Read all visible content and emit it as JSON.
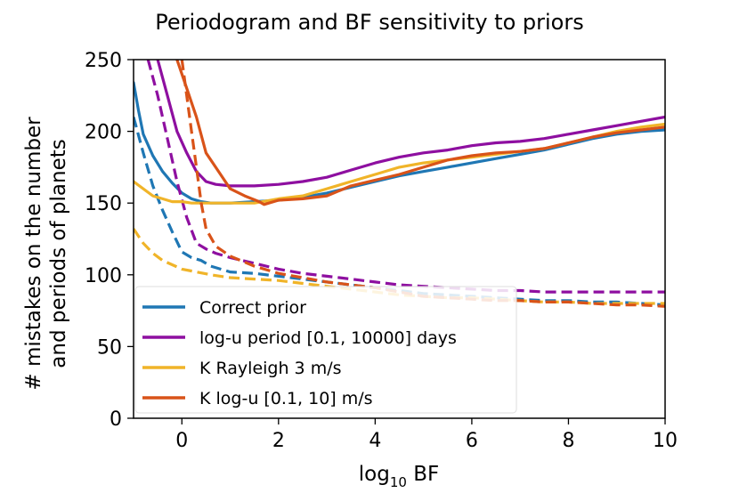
{
  "chart_data": {
    "type": "line",
    "title": "Periodogram and BF sensitivity to priors",
    "xlabel_main": "log",
    "xlabel_sub": "10",
    "xlabel_tail": " BF",
    "ylabel_lines": [
      "# mistakes on the number",
      "and periods of planets"
    ],
    "xlim": [
      -1,
      10
    ],
    "ylim": [
      0,
      250
    ],
    "xticks": [
      0,
      2,
      4,
      6,
      8,
      10
    ],
    "yticks": [
      0,
      50,
      100,
      150,
      200,
      250
    ],
    "grid": false,
    "legend_position": "lower-left",
    "legend_note": "solid = Bayes factor, dashed = periodogram (styles shown, not printed)",
    "series": [
      {
        "name": "Correct prior",
        "color": "#1f77b4",
        "solid": [
          [
            -1.0,
            234
          ],
          [
            -0.9,
            215
          ],
          [
            -0.8,
            198
          ],
          [
            -0.6,
            183
          ],
          [
            -0.4,
            172
          ],
          [
            -0.2,
            164
          ],
          [
            0.0,
            157
          ],
          [
            0.2,
            153
          ],
          [
            0.4,
            151
          ],
          [
            0.6,
            150
          ],
          [
            1.0,
            150
          ],
          [
            1.5,
            151
          ],
          [
            2.0,
            152
          ],
          [
            2.5,
            154
          ],
          [
            3.0,
            157
          ],
          [
            3.5,
            161
          ],
          [
            4.0,
            165
          ],
          [
            4.5,
            169
          ],
          [
            5.0,
            172
          ],
          [
            5.5,
            175
          ],
          [
            6.0,
            178
          ],
          [
            6.5,
            181
          ],
          [
            7.0,
            184
          ],
          [
            7.5,
            187
          ],
          [
            8.0,
            191
          ],
          [
            8.5,
            195
          ],
          [
            9.0,
            198
          ],
          [
            9.5,
            200
          ],
          [
            10.0,
            201
          ]
        ],
        "dashed": [
          [
            -1.0,
            210
          ],
          [
            -0.8,
            185
          ],
          [
            -0.6,
            162
          ],
          [
            -0.4,
            145
          ],
          [
            -0.2,
            130
          ],
          [
            0.0,
            116
          ],
          [
            0.2,
            112
          ],
          [
            0.4,
            110
          ],
          [
            0.6,
            106
          ],
          [
            0.8,
            104
          ],
          [
            1.0,
            102
          ],
          [
            1.5,
            101
          ],
          [
            2.0,
            99
          ],
          [
            2.5,
            97
          ],
          [
            3.0,
            95
          ],
          [
            3.5,
            93
          ],
          [
            4.0,
            91
          ],
          [
            4.5,
            89
          ],
          [
            5.0,
            87
          ],
          [
            5.5,
            86
          ],
          [
            6.0,
            85
          ],
          [
            6.5,
            84
          ],
          [
            7.0,
            83
          ],
          [
            7.5,
            82
          ],
          [
            8.0,
            82
          ],
          [
            8.5,
            81
          ],
          [
            9.0,
            81
          ],
          [
            9.5,
            80
          ],
          [
            10.0,
            79
          ]
        ]
      },
      {
        "name": "log-u period [0.1, 10000] days",
        "color": "#8e0fa0",
        "solid": [
          [
            -0.5,
            250
          ],
          [
            -0.3,
            225
          ],
          [
            -0.1,
            200
          ],
          [
            0.1,
            185
          ],
          [
            0.3,
            172
          ],
          [
            0.5,
            165
          ],
          [
            0.7,
            163
          ],
          [
            1.0,
            162
          ],
          [
            1.5,
            162
          ],
          [
            2.0,
            163
          ],
          [
            2.5,
            165
          ],
          [
            3.0,
            168
          ],
          [
            3.5,
            173
          ],
          [
            4.0,
            178
          ],
          [
            4.5,
            182
          ],
          [
            5.0,
            185
          ],
          [
            5.5,
            187
          ],
          [
            6.0,
            190
          ],
          [
            6.5,
            192
          ],
          [
            7.0,
            193
          ],
          [
            7.5,
            195
          ],
          [
            8.0,
            198
          ],
          [
            8.5,
            201
          ],
          [
            9.0,
            204
          ],
          [
            9.5,
            207
          ],
          [
            10.0,
            210
          ]
        ],
        "dashed": [
          [
            -0.7,
            250
          ],
          [
            -0.5,
            225
          ],
          [
            -0.3,
            195
          ],
          [
            -0.1,
            165
          ],
          [
            0.1,
            140
          ],
          [
            0.3,
            122
          ],
          [
            0.5,
            118
          ],
          [
            0.7,
            115
          ],
          [
            1.0,
            112
          ],
          [
            1.5,
            108
          ],
          [
            2.0,
            104
          ],
          [
            2.5,
            101
          ],
          [
            3.0,
            99
          ],
          [
            3.5,
            97
          ],
          [
            4.0,
            95
          ],
          [
            4.5,
            93
          ],
          [
            5.0,
            92
          ],
          [
            5.5,
            91
          ],
          [
            6.0,
            90
          ],
          [
            6.5,
            89
          ],
          [
            7.0,
            89
          ],
          [
            7.5,
            88
          ],
          [
            8.0,
            88
          ],
          [
            8.5,
            88
          ],
          [
            9.0,
            88
          ],
          [
            9.5,
            88
          ],
          [
            10.0,
            88
          ]
        ]
      },
      {
        "name": "K Rayleigh 3 m/s",
        "color": "#f0b429",
        "solid": [
          [
            -1.0,
            165
          ],
          [
            -0.8,
            160
          ],
          [
            -0.6,
            155
          ],
          [
            -0.4,
            153
          ],
          [
            -0.2,
            151
          ],
          [
            0.0,
            151
          ],
          [
            0.2,
            150
          ],
          [
            0.5,
            150
          ],
          [
            1.0,
            150
          ],
          [
            1.5,
            150
          ],
          [
            2.0,
            153
          ],
          [
            2.5,
            155
          ],
          [
            3.0,
            160
          ],
          [
            3.5,
            165
          ],
          [
            4.0,
            170
          ],
          [
            4.5,
            175
          ],
          [
            5.0,
            178
          ],
          [
            5.5,
            180
          ],
          [
            6.0,
            182
          ],
          [
            6.5,
            184
          ],
          [
            7.0,
            186
          ],
          [
            7.5,
            188
          ],
          [
            8.0,
            192
          ],
          [
            8.5,
            196
          ],
          [
            9.0,
            200
          ],
          [
            9.5,
            203
          ],
          [
            10.0,
            205
          ]
        ],
        "dashed": [
          [
            -1.0,
            132
          ],
          [
            -0.8,
            122
          ],
          [
            -0.6,
            115
          ],
          [
            -0.4,
            110
          ],
          [
            -0.2,
            107
          ],
          [
            0.0,
            104
          ],
          [
            0.3,
            102
          ],
          [
            0.6,
            100
          ],
          [
            1.0,
            98
          ],
          [
            1.5,
            97
          ],
          [
            2.0,
            96
          ],
          [
            2.5,
            94
          ],
          [
            3.0,
            92
          ],
          [
            3.5,
            90
          ],
          [
            4.0,
            88
          ],
          [
            4.5,
            86
          ],
          [
            5.0,
            85
          ],
          [
            5.5,
            84
          ],
          [
            6.0,
            84
          ],
          [
            6.5,
            83
          ],
          [
            7.0,
            82
          ],
          [
            7.5,
            81
          ],
          [
            8.0,
            81
          ],
          [
            8.5,
            80
          ],
          [
            9.0,
            80
          ],
          [
            9.5,
            80
          ],
          [
            10.0,
            80
          ]
        ]
      },
      {
        "name": "K log-u [0.1, 10] m/s",
        "color": "#d95319",
        "solid": [
          [
            -0.1,
            250
          ],
          [
            0.1,
            230
          ],
          [
            0.3,
            210
          ],
          [
            0.5,
            185
          ],
          [
            0.8,
            170
          ],
          [
            1.0,
            160
          ],
          [
            1.3,
            155
          ],
          [
            1.6,
            151
          ],
          [
            1.7,
            149
          ],
          [
            2.0,
            152
          ],
          [
            2.5,
            153
          ],
          [
            3.0,
            155
          ],
          [
            3.5,
            162
          ],
          [
            4.0,
            166
          ],
          [
            4.5,
            170
          ],
          [
            5.0,
            175
          ],
          [
            5.5,
            180
          ],
          [
            6.0,
            183
          ],
          [
            6.5,
            185
          ],
          [
            7.0,
            186
          ],
          [
            7.5,
            188
          ],
          [
            8.0,
            192
          ],
          [
            8.5,
            196
          ],
          [
            9.0,
            199
          ],
          [
            9.5,
            201
          ],
          [
            10.0,
            203
          ]
        ],
        "dashed": [
          [
            0.0,
            250
          ],
          [
            0.1,
            225
          ],
          [
            0.2,
            200
          ],
          [
            0.3,
            175
          ],
          [
            0.4,
            150
          ],
          [
            0.5,
            132
          ],
          [
            0.7,
            120
          ],
          [
            1.0,
            113
          ],
          [
            1.5,
            106
          ],
          [
            2.0,
            101
          ],
          [
            2.5,
            98
          ],
          [
            3.0,
            95
          ],
          [
            3.5,
            93
          ],
          [
            4.0,
            91
          ],
          [
            4.5,
            88
          ],
          [
            5.0,
            85
          ],
          [
            5.5,
            84
          ],
          [
            6.0,
            83
          ],
          [
            6.5,
            82
          ],
          [
            7.0,
            82
          ],
          [
            7.5,
            81
          ],
          [
            8.0,
            81
          ],
          [
            8.5,
            80
          ],
          [
            9.0,
            79
          ],
          [
            9.5,
            79
          ],
          [
            10.0,
            78
          ]
        ]
      }
    ]
  }
}
